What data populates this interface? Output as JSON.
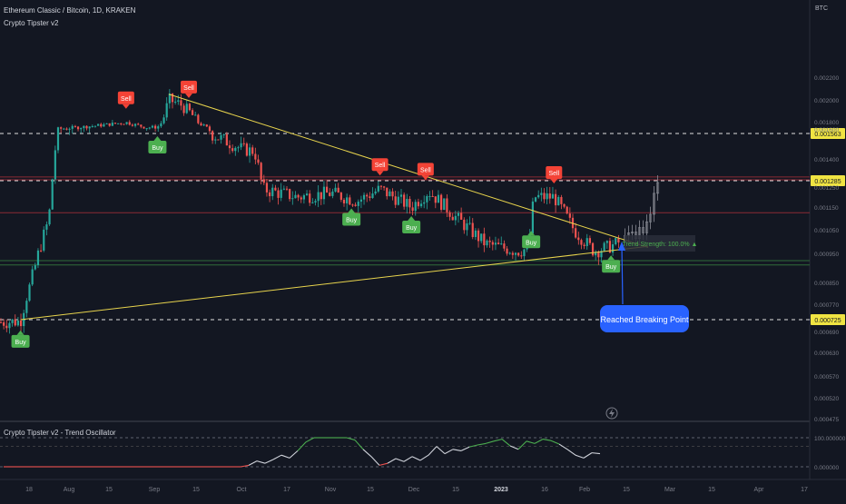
{
  "header": {
    "symbol_line": "Ethereum Classic / Bitcoin, 1D, KRAKEN",
    "indicator_line": "Crypto Tipster v2",
    "currency": "BTC"
  },
  "chart_data": [
    {
      "type": "candlestick",
      "title": "Ethereum Classic / Bitcoin, 1D, KRAKEN",
      "price_axis_labels": [
        "0.002200",
        "0.002000",
        "0.001800",
        "0.001600",
        "0.001400",
        "0.001250",
        "0.001150",
        "0.001050",
        "0.000950",
        "0.000850",
        "0.000770",
        "0.000690",
        "0.000630",
        "0.000570",
        "0.000520",
        "0.000475"
      ],
      "time_axis_labels": [
        "18",
        "Aug",
        "15",
        "Sep",
        "15",
        "Oct",
        "17",
        "Nov",
        "15",
        "Dec",
        "15",
        "2023",
        "16",
        "Feb",
        "15",
        "Mar",
        "15",
        "Apr",
        "17"
      ],
      "price_levels": [
        {
          "label": "0.001563",
          "value": 0.001563,
          "style": "dashed-white"
        },
        {
          "label": "0.001285",
          "value": 0.001285,
          "style": "dashed-white"
        },
        {
          "label": "0.000725",
          "value": 0.000725,
          "style": "dashed-white"
        },
        {
          "value": 0.001305,
          "style": "solid-red"
        },
        {
          "value": 0.00129,
          "style": "solid-red"
        },
        {
          "value": 0.001125,
          "style": "solid-red"
        },
        {
          "value": 0.000925,
          "style": "solid-green"
        },
        {
          "value": 0.00091,
          "style": "solid-green"
        }
      ],
      "trendlines": [
        {
          "from": [
            "Sep 05",
            0.00205
          ],
          "to": [
            "Feb 20",
            0.000975
          ],
          "color": "#e8d44d"
        },
        {
          "from": [
            "Jul 15",
            0.000725
          ],
          "to": [
            "Feb 20",
            0.00098
          ],
          "color": "#e8d44d"
        }
      ],
      "signals": [
        {
          "label": "Buy",
          "type": "buy",
          "date": "Jul 15"
        },
        {
          "label": "Sell",
          "type": "sell",
          "date": "Aug 21"
        },
        {
          "label": "Buy",
          "type": "buy",
          "date": "Sep 01"
        },
        {
          "label": "Sell",
          "type": "sell",
          "date": "Sep 12"
        },
        {
          "label": "Buy",
          "type": "buy",
          "date": "Nov 08"
        },
        {
          "label": "Sell",
          "type": "sell",
          "date": "Nov 18"
        },
        {
          "label": "Buy",
          "type": "buy",
          "date": "Nov 29"
        },
        {
          "label": "Sell",
          "type": "sell",
          "date": "Dec 04"
        },
        {
          "label": "Buy",
          "type": "buy",
          "date": "Jan 10"
        },
        {
          "label": "Sell",
          "type": "sell",
          "date": "Jan 18"
        },
        {
          "label": "Buy",
          "type": "buy",
          "date": "Feb 07"
        }
      ],
      "annotations": [
        {
          "text": "Trend Strength: 100.0% ▲",
          "color": "#4caf50"
        },
        {
          "text": "Reached Breaking Point",
          "color": "#2962ff"
        }
      ],
      "grid": false
    },
    {
      "type": "line",
      "title": "Crypto Tipster v2 - Trend Oscillator",
      "ylim": [
        0,
        100
      ],
      "axis_labels": [
        "100.000000",
        "0.000000"
      ],
      "x_index": [
        0,
        3,
        6,
        9,
        12,
        15,
        18,
        21,
        24,
        27,
        30,
        33,
        36,
        39,
        42,
        45,
        48,
        51,
        54,
        57,
        60,
        63,
        66,
        69,
        72,
        75,
        78,
        81,
        84,
        87,
        90,
        93,
        96,
        99,
        102,
        105,
        108,
        111,
        114,
        117,
        120,
        123,
        126,
        129,
        132,
        135,
        138,
        141,
        144,
        147,
        150,
        153,
        156,
        159,
        162,
        165,
        168,
        171,
        174,
        177,
        180,
        183,
        186,
        189,
        192,
        195,
        198,
        201,
        204,
        207,
        210,
        213,
        216,
        219
      ],
      "values": [
        0,
        0,
        0,
        0,
        0,
        0,
        0,
        0,
        0,
        0,
        0,
        0,
        0,
        0,
        0,
        0,
        0,
        0,
        0,
        0,
        0,
        0,
        0,
        0,
        0,
        0,
        0,
        0,
        0,
        0,
        5,
        20,
        12,
        25,
        40,
        30,
        55,
        85,
        100,
        100,
        100,
        100,
        100,
        92,
        60,
        35,
        5,
        12,
        28,
        18,
        35,
        22,
        40,
        70,
        45,
        60,
        55,
        68,
        75,
        80,
        88,
        95,
        72,
        60,
        88,
        80,
        95,
        90,
        78,
        60,
        40,
        30,
        48,
        45
      ]
    }
  ]
}
